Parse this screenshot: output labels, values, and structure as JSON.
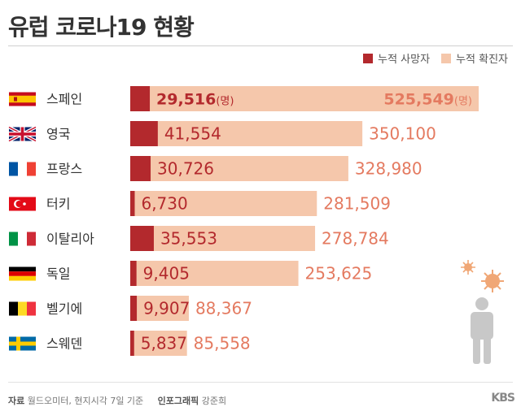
{
  "header": {
    "title": "유럽 코로나19 현황"
  },
  "colors": {
    "deaths": "#b3292d",
    "cases": "#f5c7ab",
    "cases_text": "#e47a60",
    "deaths_text": "#b3292d"
  },
  "chart_data": {
    "type": "bar",
    "orientation": "horizontal",
    "stacked": "overlay",
    "categories": [
      "스페인",
      "영국",
      "프랑스",
      "터키",
      "이탈리아",
      "독일",
      "벨기에",
      "스웨덴"
    ],
    "flags": [
      "spain",
      "uk",
      "france",
      "turkey",
      "italy",
      "germany",
      "belgium",
      "sweden"
    ],
    "series": [
      {
        "name": "누적 사망자",
        "values": [
          29516,
          41554,
          30726,
          6730,
          35553,
          9405,
          9907,
          5837
        ],
        "labels": [
          "29,516",
          "41,554",
          "30,726",
          "6,730",
          "35,553",
          "9,405",
          "9,907",
          "5,837"
        ]
      },
      {
        "name": "누적 확진자",
        "values": [
          525549,
          350100,
          328980,
          281509,
          278784,
          253625,
          88367,
          85558
        ],
        "labels": [
          "525,549",
          "350,100",
          "328,980",
          "281,509",
          "278,784",
          "253,625",
          "88,367",
          "85,558"
        ]
      }
    ],
    "unit_label": "(명)",
    "legend": "top-right"
  },
  "footer": {
    "source_label": "자료",
    "source_text": "월드오미터, 현지시각 7일 기준",
    "credit_label": "인포그래픽",
    "credit_text": "강준희",
    "brand": "KBS"
  }
}
